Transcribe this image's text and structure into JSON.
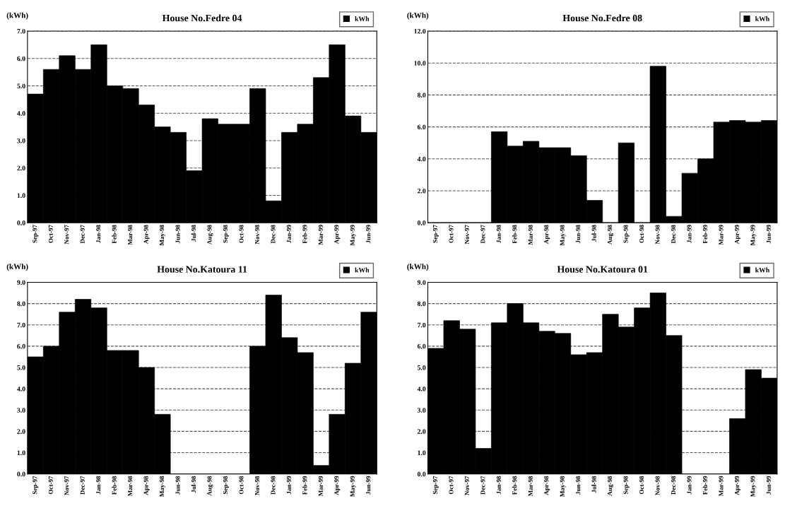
{
  "chart_data": [
    {
      "type": "bar",
      "title": "House No.Fedre 04",
      "ylabel": "(kWh)",
      "legend": "top right",
      "grid": "y",
      "categories": [
        "Sep-97",
        "Oct-97",
        "Nov-97",
        "Dec-97",
        "Jan-98",
        "Feb-98",
        "Mar-98",
        "Apr-98",
        "May-98",
        "Jun-98",
        "Jul-98",
        "Aug-98",
        "Sep-98",
        "Oct-98",
        "Nov-98",
        "Dec-98",
        "Jan-99",
        "Feb-99",
        "Mar-99",
        "Apr-99",
        "May-99",
        "Jun-99"
      ],
      "series": [
        {
          "name": "kWh",
          "color": "#000000",
          "values": [
            4.7,
            5.6,
            6.1,
            5.6,
            6.5,
            5.0,
            4.9,
            4.3,
            3.5,
            3.3,
            1.9,
            3.8,
            3.6,
            3.6,
            4.9,
            0.8,
            3.3,
            3.6,
            5.3,
            6.5,
            3.9,
            3.3
          ]
        }
      ],
      "ylim": [
        0,
        7
      ],
      "yticks": [
        {
          "value": 0,
          "label": "0.0"
        },
        {
          "value": 1,
          "label": "1.0"
        },
        {
          "value": 2,
          "label": "2.0"
        },
        {
          "value": 3,
          "label": "3.0"
        },
        {
          "value": 4,
          "label": "4.0"
        },
        {
          "value": 5,
          "label": "5.0"
        },
        {
          "value": 6,
          "label": "6.0"
        },
        {
          "value": 7,
          "label": "7.0"
        }
      ]
    },
    {
      "type": "bar",
      "title": "House No.Fedre 08",
      "ylabel": "(kWh)",
      "legend": "top right",
      "grid": "y",
      "categories": [
        "Sep-97",
        "Oct-97",
        "Nov-97",
        "Dec-97",
        "Jan-98",
        "Feb-98",
        "Mar-98",
        "Apr-98",
        "May-98",
        "Jun-98",
        "Jul-98",
        "Aug-98",
        "Sep-98",
        "Oct-98",
        "Nov-98",
        "Dec-98",
        "Jan-99",
        "Feb-99",
        "Mar-99",
        "Apr-99",
        "May-99",
        "Jun-99"
      ],
      "series": [
        {
          "name": "kWh",
          "color": "#000000",
          "values": [
            0,
            0,
            0,
            0,
            5.7,
            4.8,
            5.1,
            4.7,
            4.7,
            4.2,
            1.4,
            0,
            5.0,
            0,
            9.8,
            0.4,
            3.1,
            4.0,
            6.3,
            6.4,
            6.3,
            6.4
          ]
        }
      ],
      "ylim": [
        0,
        12
      ],
      "yticks": [
        {
          "value": 0,
          "label": "0.0"
        },
        {
          "value": 2,
          "label": "2.0"
        },
        {
          "value": 4,
          "label": "4.0"
        },
        {
          "value": 6,
          "label": "6.0"
        },
        {
          "value": 8,
          "label": "8.0"
        },
        {
          "value": 10,
          "label": "10.0"
        },
        {
          "value": 12,
          "label": "12.0"
        }
      ]
    },
    {
      "type": "bar",
      "title": "House No.Katoura 11",
      "ylabel": "(kWh)",
      "legend": "top right",
      "grid": "y",
      "categories": [
        "Sep-97",
        "Oct-97",
        "Nov-97",
        "Dec-97",
        "Jan-98",
        "Feb-98",
        "Mar-98",
        "Apr-98",
        "May-98",
        "Jun-98",
        "Jul-98",
        "Aug-98",
        "Sep-98",
        "Oct-98",
        "Nov-98",
        "Dec-98",
        "Jan-99",
        "Feb-99",
        "Mar-99",
        "Apr-99",
        "May-99",
        "Jun-99"
      ],
      "series": [
        {
          "name": "kWh",
          "color": "#000000",
          "values": [
            5.5,
            6.0,
            7.6,
            8.2,
            7.8,
            5.8,
            5.8,
            5.0,
            2.8,
            0,
            0,
            0,
            0,
            0,
            6.0,
            8.4,
            6.4,
            5.7,
            0.4,
            2.8,
            5.2,
            7.6
          ]
        }
      ],
      "ylim": [
        0,
        9
      ],
      "yticks": [
        {
          "value": 0,
          "label": "0.0"
        },
        {
          "value": 1,
          "label": "1.0"
        },
        {
          "value": 2,
          "label": "2.0"
        },
        {
          "value": 3,
          "label": "3.0"
        },
        {
          "value": 4,
          "label": "4.0"
        },
        {
          "value": 5,
          "label": "5.0"
        },
        {
          "value": 6,
          "label": "6.0"
        },
        {
          "value": 7,
          "label": "7.0"
        },
        {
          "value": 8,
          "label": "8.0"
        },
        {
          "value": 9,
          "label": "9.0"
        }
      ]
    },
    {
      "type": "bar",
      "title": "House No.Katoura 01",
      "ylabel": "(kWh)",
      "legend": "top right",
      "grid": "y",
      "categories": [
        "Sep-97",
        "Oct-97",
        "Nov-97",
        "Dec-97",
        "Jan-98",
        "Feb-98",
        "Mar-98",
        "Apr-98",
        "May-98",
        "Jun-98",
        "Jul-98",
        "Aug-98",
        "Sep-98",
        "Oct-98",
        "Nov-98",
        "Dec-98",
        "Jan-99",
        "Feb-99",
        "Mar-99",
        "Apr-99",
        "May-99",
        "Jun-99"
      ],
      "series": [
        {
          "name": "kWh",
          "color": "#000000",
          "values": [
            5.9,
            7.2,
            6.8,
            1.2,
            7.1,
            8.0,
            7.1,
            6.7,
            6.6,
            5.6,
            5.7,
            7.5,
            6.9,
            7.8,
            8.5,
            6.5,
            0,
            0,
            0,
            2.6,
            4.9,
            4.5
          ]
        }
      ],
      "ylim": [
        0,
        9
      ],
      "yticks": [
        {
          "value": 0,
          "label": "0.0"
        },
        {
          "value": 1,
          "label": "1.0"
        },
        {
          "value": 2,
          "label": "2.0"
        },
        {
          "value": 3,
          "label": "3.0"
        },
        {
          "value": 4,
          "label": "4.0"
        },
        {
          "value": 5,
          "label": "5.0"
        },
        {
          "value": 6,
          "label": "6.0"
        },
        {
          "value": 7,
          "label": "7.0"
        },
        {
          "value": 8,
          "label": "8.0"
        },
        {
          "value": 9,
          "label": "9.0"
        }
      ]
    }
  ]
}
